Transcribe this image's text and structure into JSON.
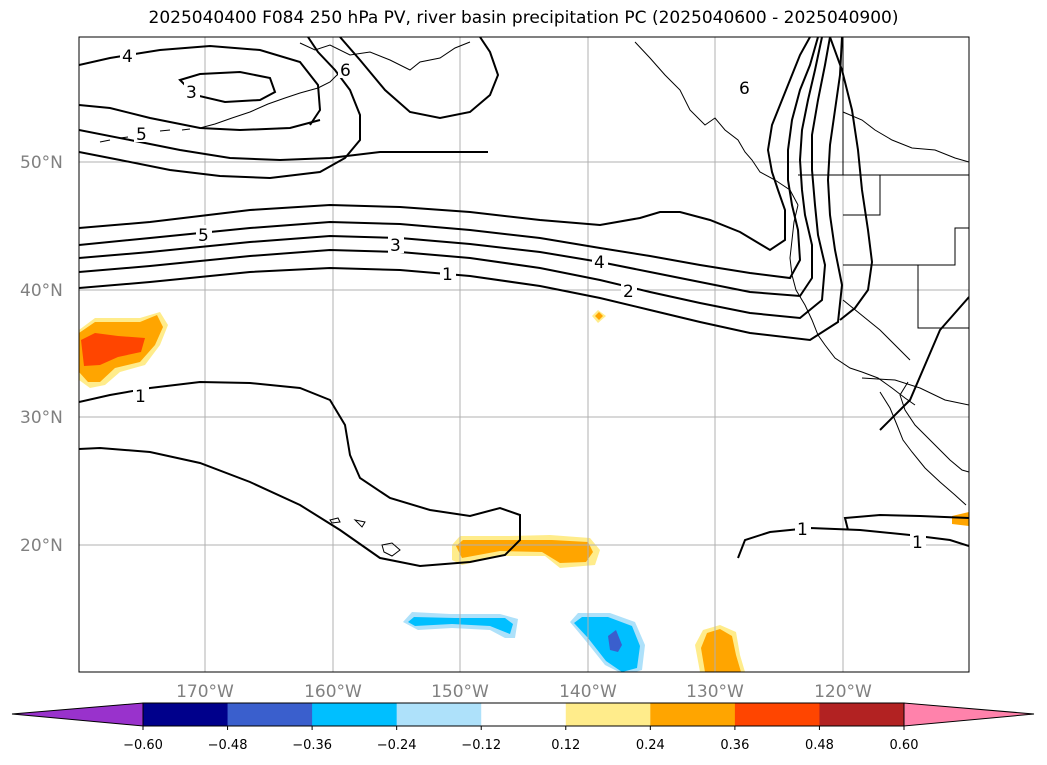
{
  "title": "2025040400 F084 250 hPa PV, river basin precipitation PC (2025040600 - 2025040900)",
  "lat_labels": [
    "50°N",
    "40°N",
    "30°N",
    "20°N"
  ],
  "lon_labels": [
    "170°W",
    "160°W",
    "150°W",
    "140°W",
    "130°W",
    "120°W"
  ],
  "contour_labels": [
    "4",
    "3",
    "6",
    "5",
    "6",
    "5",
    "3",
    "1",
    "4",
    "2",
    "1",
    "1",
    "1"
  ],
  "colorbar": {
    "ticks": [
      "-0.60",
      "-0.48",
      "-0.36",
      "-0.24",
      "-0.12",
      "0.12",
      "0.24",
      "0.36",
      "0.48",
      "0.60"
    ],
    "colors": [
      "#9932cc",
      "#00008b",
      "#3a5fcd",
      "#00bfff",
      "#aee1fa",
      "#ffffff",
      "#ffec8b",
      "#ffa500",
      "#ff4500",
      "#b22222",
      "#ff82ab"
    ]
  }
}
